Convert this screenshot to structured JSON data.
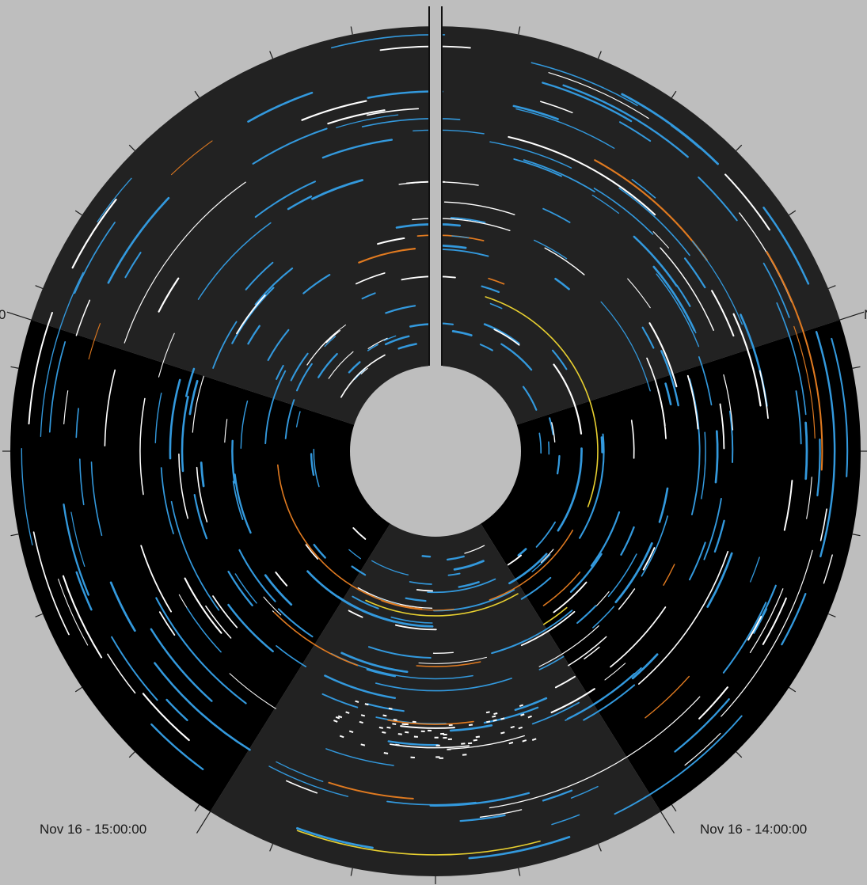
{
  "chart_data": {
    "type": "polar-timelapse",
    "title": "",
    "time_labels": [
      {
        "text": "Nov 16 - 14:00:00",
        "angle_deg": 148
      },
      {
        "text": "Nov 16 - 15:00:00",
        "angle_deg": 212
      }
    ],
    "partial_time_labels": [
      {
        "text": "0",
        "angle_deg": 288
      },
      {
        "text": "N",
        "angle_deg": 72
      }
    ],
    "sectors": [
      {
        "name": "upper",
        "start_deg": 288,
        "end_deg": 72,
        "shade": "#222222"
      },
      {
        "name": "right",
        "start_deg": 72,
        "end_deg": 148,
        "shade": "#000000"
      },
      {
        "name": "bottom",
        "start_deg": 148,
        "end_deg": 212,
        "shade": "#222222"
      },
      {
        "name": "left",
        "start_deg": 212,
        "end_deg": 288,
        "shade": "#000000"
      }
    ],
    "tick_count": 32,
    "colors": {
      "background": "#bebebe",
      "trail_blue": "#3399dd",
      "trail_white": "#ffffff",
      "trail_orange": "#e07a20",
      "trail_yellow": "#e8d030",
      "dark_sector": "#000000",
      "light_sector": "#222222"
    },
    "arcs": [
      {
        "r": 200,
        "a0": 120,
        "a1": 160,
        "color": "orange"
      },
      {
        "r": 200,
        "a0": 185,
        "a1": 265,
        "color": "orange"
      },
      {
        "r": 205,
        "a0": 18,
        "a1": 110,
        "color": "yellow"
      },
      {
        "r": 208,
        "a0": 150,
        "a1": 205,
        "color": "yellow"
      },
      {
        "r": 288,
        "a0": 200,
        "a1": 225,
        "color": "orange"
      },
      {
        "r": 345,
        "a0": 172,
        "a1": 190,
        "color": "orange"
      },
      {
        "r": 272,
        "a0": 168,
        "a1": 185,
        "color": "orange"
      },
      {
        "r": 510,
        "a0": 165,
        "a1": 200,
        "color": "yellow"
      },
      {
        "r": 238,
        "a0": 130,
        "a1": 145,
        "color": "orange"
      },
      {
        "r": 258,
        "a0": 140,
        "a1": 148,
        "color": "yellow"
      }
    ]
  }
}
